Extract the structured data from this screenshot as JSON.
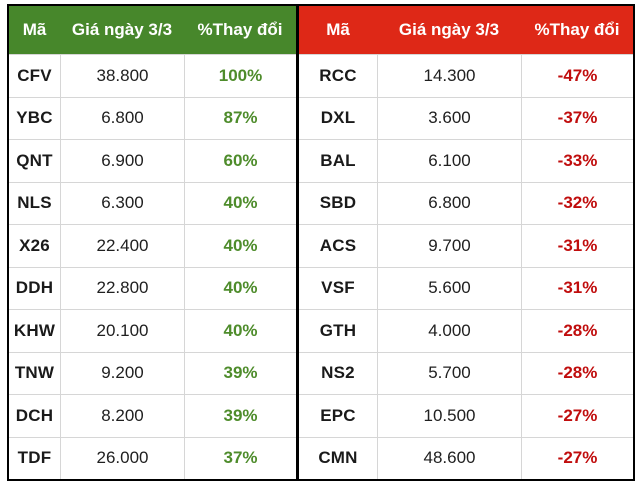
{
  "chart_data": [
    {
      "type": "table",
      "name": "top-gainers",
      "header": {
        "code": "Mã",
        "price": "Giá ngày 3/3",
        "change": "%Thay đổi"
      },
      "header_bg": "#47872b",
      "change_color": "#4e8c2b",
      "rows": [
        {
          "code": "CFV",
          "price": "38.800",
          "change": "100%"
        },
        {
          "code": "YBC",
          "price": "6.800",
          "change": "87%"
        },
        {
          "code": "QNT",
          "price": "6.900",
          "change": "60%"
        },
        {
          "code": "NLS",
          "price": "6.300",
          "change": "40%"
        },
        {
          "code": "X26",
          "price": "22.400",
          "change": "40%"
        },
        {
          "code": "DDH",
          "price": "22.800",
          "change": "40%"
        },
        {
          "code": "KHW",
          "price": "20.100",
          "change": "40%"
        },
        {
          "code": "TNW",
          "price": "9.200",
          "change": "39%"
        },
        {
          "code": "DCH",
          "price": "8.200",
          "change": "39%"
        },
        {
          "code": "TDF",
          "price": "26.000",
          "change": "37%"
        }
      ]
    },
    {
      "type": "table",
      "name": "top-losers",
      "header": {
        "code": "Mã",
        "price": "Giá ngày 3/3",
        "change": "%Thay đổi"
      },
      "header_bg": "#de2817",
      "change_color": "#c00d0d",
      "rows": [
        {
          "code": "RCC",
          "price": "14.300",
          "change": "-47%"
        },
        {
          "code": "DXL",
          "price": "3.600",
          "change": "-37%"
        },
        {
          "code": "BAL",
          "price": "6.100",
          "change": "-33%"
        },
        {
          "code": "SBD",
          "price": "6.800",
          "change": "-32%"
        },
        {
          "code": "ACS",
          "price": "9.700",
          "change": "-31%"
        },
        {
          "code": "VSF",
          "price": "5.600",
          "change": "-31%"
        },
        {
          "code": "GTH",
          "price": "4.000",
          "change": "-28%"
        },
        {
          "code": "NS2",
          "price": "5.700",
          "change": "-28%"
        },
        {
          "code": "EPC",
          "price": "10.500",
          "change": "-27%"
        },
        {
          "code": "CMN",
          "price": "48.600",
          "change": "-27%"
        }
      ]
    }
  ]
}
